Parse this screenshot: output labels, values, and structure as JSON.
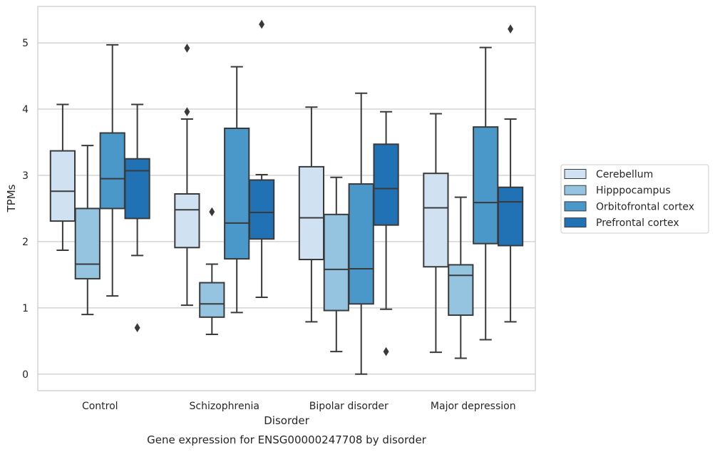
{
  "chart_data": {
    "type": "box",
    "xlabel": "Disorder",
    "ylabel": "TPMs",
    "caption": "Gene expression for ENSG00000247708 by disorder",
    "ylim": [
      -0.25,
      5.55
    ],
    "yticks": [
      0,
      1,
      2,
      3,
      4,
      5
    ],
    "grid": "horizontal",
    "legend_position": "right",
    "categories": [
      "Control",
      "Schizophrenia",
      "Bipolar disorder",
      "Major depression"
    ],
    "series": [
      {
        "name": "Cerebellum",
        "color": "#d0e1f2",
        "boxes": [
          {
            "whisker_low": 1.87,
            "q1": 2.31,
            "median": 2.76,
            "q3": 3.37,
            "whisker_high": 4.07,
            "outliers": []
          },
          {
            "whisker_low": 1.04,
            "q1": 1.91,
            "median": 2.48,
            "q3": 2.72,
            "whisker_high": 3.85,
            "outliers": [
              3.96,
              4.92
            ]
          },
          {
            "whisker_low": 0.79,
            "q1": 1.73,
            "median": 2.36,
            "q3": 3.13,
            "whisker_high": 4.03,
            "outliers": []
          },
          {
            "whisker_low": 0.33,
            "q1": 1.62,
            "median": 2.51,
            "q3": 3.03,
            "whisker_high": 3.93,
            "outliers": []
          }
        ]
      },
      {
        "name": "Hipppocampus",
        "color": "#94c4df",
        "boxes": [
          {
            "whisker_low": 0.9,
            "q1": 1.44,
            "median": 1.66,
            "q3": 2.5,
            "whisker_high": 3.45,
            "outliers": []
          },
          {
            "whisker_low": 0.6,
            "q1": 0.86,
            "median": 1.06,
            "q3": 1.38,
            "whisker_high": 1.66,
            "outliers": [
              2.45
            ]
          },
          {
            "whisker_low": 0.34,
            "q1": 0.96,
            "median": 1.58,
            "q3": 2.41,
            "whisker_high": 2.97,
            "outliers": []
          },
          {
            "whisker_low": 0.24,
            "q1": 0.89,
            "median": 1.49,
            "q3": 1.65,
            "whisker_high": 2.67,
            "outliers": []
          }
        ]
      },
      {
        "name": "Orbitofrontal cortex",
        "color": "#4a98c9",
        "boxes": [
          {
            "whisker_low": 1.18,
            "q1": 2.5,
            "median": 2.95,
            "q3": 3.64,
            "whisker_high": 4.97,
            "outliers": []
          },
          {
            "whisker_low": 0.93,
            "q1": 1.74,
            "median": 2.28,
            "q3": 3.71,
            "whisker_high": 4.64,
            "outliers": []
          },
          {
            "whisker_low": 0.0,
            "q1": 1.06,
            "median": 1.59,
            "q3": 2.87,
            "whisker_high": 4.24,
            "outliers": []
          },
          {
            "whisker_low": 0.52,
            "q1": 1.97,
            "median": 2.59,
            "q3": 3.73,
            "whisker_high": 4.93,
            "outliers": []
          }
        ]
      },
      {
        "name": "Prefrontal cortex",
        "color": "#2171b5",
        "boxes": [
          {
            "whisker_low": 1.79,
            "q1": 2.35,
            "median": 3.07,
            "q3": 3.25,
            "whisker_high": 4.07,
            "outliers": [
              0.7
            ]
          },
          {
            "whisker_low": 1.16,
            "q1": 2.04,
            "median": 2.44,
            "q3": 2.93,
            "whisker_high": 3.01,
            "outliers": [
              5.28
            ]
          },
          {
            "whisker_low": 0.98,
            "q1": 2.25,
            "median": 2.8,
            "q3": 3.47,
            "whisker_high": 3.96,
            "outliers": [
              0.34
            ]
          },
          {
            "whisker_low": 0.79,
            "q1": 1.94,
            "median": 2.6,
            "q3": 2.82,
            "whisker_high": 3.85,
            "outliers": [
              5.21
            ]
          }
        ]
      }
    ]
  }
}
